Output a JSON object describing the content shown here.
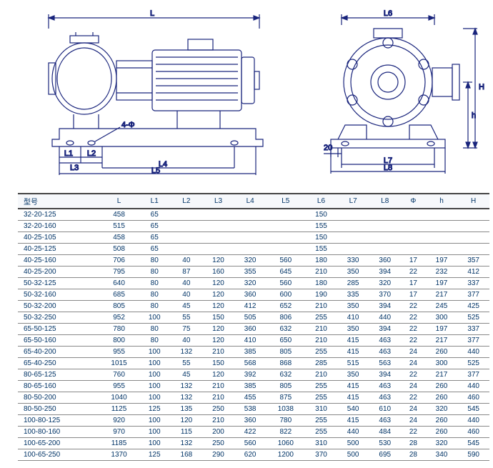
{
  "drawing": {
    "stroke": "#19247c",
    "stroke_width": 1.2,
    "labels_side": [
      "L",
      "L1",
      "L2",
      "L3",
      "L4",
      "L5",
      "4-Φ"
    ],
    "labels_front": [
      "L6",
      "L7",
      "L8",
      "H",
      "h",
      "20"
    ]
  },
  "table": {
    "columns": [
      "型号",
      "L",
      "L1",
      "L2",
      "L3",
      "L4",
      "L5",
      "L6",
      "L7",
      "L8",
      "Φ",
      "h",
      "H"
    ],
    "rows": [
      [
        "32-20-125",
        "458",
        "65",
        "",
        "",
        "",
        "",
        "150",
        "",
        "",
        "",
        "",
        ""
      ],
      [
        "32-20-160",
        "515",
        "65",
        "",
        "",
        "",
        "",
        "155",
        "",
        "",
        "",
        "",
        ""
      ],
      [
        "40-25-105",
        "458",
        "65",
        "",
        "",
        "",
        "",
        "150",
        "",
        "",
        "",
        "",
        ""
      ],
      [
        "40-25-125",
        "508",
        "65",
        "",
        "",
        "",
        "",
        "155",
        "",
        "",
        "",
        "",
        ""
      ],
      [
        "40-25-160",
        "706",
        "80",
        "40",
        "120",
        "320",
        "560",
        "180",
        "330",
        "360",
        "17",
        "197",
        "357"
      ],
      [
        "40-25-200",
        "795",
        "80",
        "87",
        "160",
        "355",
        "645",
        "210",
        "350",
        "394",
        "22",
        "232",
        "412"
      ],
      [
        "50-32-125",
        "640",
        "80",
        "40",
        "120",
        "320",
        "560",
        "180",
        "285",
        "320",
        "17",
        "197",
        "337"
      ],
      [
        "50-32-160",
        "685",
        "80",
        "40",
        "120",
        "360",
        "600",
        "190",
        "335",
        "370",
        "17",
        "217",
        "377"
      ],
      [
        "50-32-200",
        "805",
        "80",
        "45",
        "120",
        "412",
        "652",
        "210",
        "350",
        "394",
        "22",
        "245",
        "425"
      ],
      [
        "50-32-250",
        "952",
        "100",
        "55",
        "150",
        "505",
        "806",
        "255",
        "410",
        "440",
        "22",
        "300",
        "525"
      ],
      [
        "65-50-125",
        "780",
        "80",
        "75",
        "120",
        "360",
        "632",
        "210",
        "350",
        "394",
        "22",
        "197",
        "337"
      ],
      [
        "65-50-160",
        "800",
        "80",
        "40",
        "120",
        "410",
        "650",
        "210",
        "415",
        "463",
        "22",
        "217",
        "377"
      ],
      [
        "65-40-200",
        "955",
        "100",
        "132",
        "210",
        "385",
        "805",
        "255",
        "415",
        "463",
        "24",
        "260",
        "440"
      ],
      [
        "65-40-250",
        "1015",
        "100",
        "55",
        "150",
        "568",
        "868",
        "285",
        "515",
        "563",
        "24",
        "300",
        "525"
      ],
      [
        "80-65-125",
        "760",
        "100",
        "45",
        "120",
        "392",
        "632",
        "210",
        "350",
        "394",
        "22",
        "217",
        "377"
      ],
      [
        "80-65-160",
        "955",
        "100",
        "132",
        "210",
        "385",
        "805",
        "255",
        "415",
        "463",
        "24",
        "260",
        "440"
      ],
      [
        "80-50-200",
        "1040",
        "100",
        "132",
        "210",
        "455",
        "875",
        "255",
        "415",
        "463",
        "22",
        "260",
        "460"
      ],
      [
        "80-50-250",
        "1125",
        "125",
        "135",
        "250",
        "538",
        "1038",
        "310",
        "540",
        "610",
        "24",
        "320",
        "545"
      ],
      [
        "100-80-125",
        "920",
        "100",
        "120",
        "210",
        "360",
        "780",
        "255",
        "415",
        "463",
        "24",
        "260",
        "440"
      ],
      [
        "100-80-160",
        "970",
        "100",
        "115",
        "200",
        "422",
        "822",
        "255",
        "440",
        "484",
        "22",
        "260",
        "460"
      ],
      [
        "100-65-200",
        "1185",
        "100",
        "132",
        "250",
        "560",
        "1060",
        "310",
        "500",
        "530",
        "28",
        "320",
        "545"
      ],
      [
        "100-65-250",
        "1370",
        "125",
        "168",
        "290",
        "620",
        "1200",
        "370",
        "500",
        "695",
        "28",
        "340",
        "590"
      ]
    ]
  }
}
